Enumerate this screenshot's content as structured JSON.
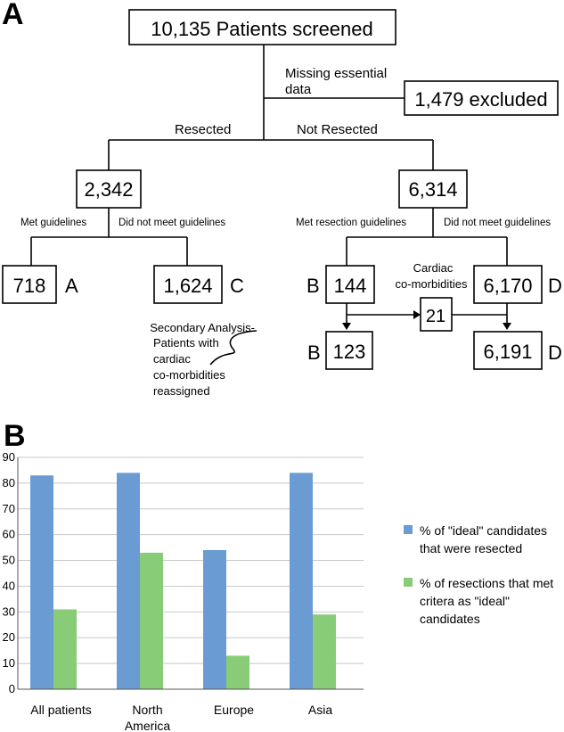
{
  "panel_a": {
    "label": "A",
    "screened": "10,135 Patients screened",
    "missing_line1": "Missing essential",
    "missing_line2": "data",
    "excluded": "1,479 excluded",
    "resected_label": "Resected",
    "not_resected_label": "Not Resected",
    "resected_total": "2,342",
    "not_resected_total": "6,314",
    "met_guidelines": "Met guidelines",
    "did_not_meet_left": "Did not meet guidelines",
    "met_resection_guidelines": "Met resection guidelines",
    "did_not_meet_right": "Did not meet guidelines",
    "box_a_value": "718",
    "box_a_letter": "A",
    "box_c_value": "1,624",
    "box_c_letter": "C",
    "box_b_value": "144",
    "box_b_letter": "B",
    "box_d_value": "6,170",
    "box_d_letter": "D",
    "cardiac_line1": "Cardiac",
    "cardiac_line2": "co-morbidities",
    "cardiac_value": "21",
    "box_b2_value": "123",
    "box_b2_letter": "B",
    "box_d2_value": "6,191",
    "box_d2_letter": "D",
    "secondary_lines": [
      "Secondary Analysis-",
      "Patients with",
      "cardiac",
      "co-morbidities",
      "reassigned"
    ]
  },
  "panel_b": {
    "label": "B"
  },
  "chart_data": {
    "type": "bar",
    "categories": [
      "All patients",
      "North America",
      "Europe",
      "Asia"
    ],
    "category_lines": [
      [
        "All patients"
      ],
      [
        "North",
        "America"
      ],
      [
        "Europe"
      ],
      [
        "Asia"
      ]
    ],
    "series": [
      {
        "name": "% of \"ideal\" candidates that were resected",
        "legend_lines": [
          "% of \"ideal\" candidates",
          "that were resected"
        ],
        "color": "#6a9bd3",
        "values": [
          83,
          84,
          54,
          84
        ]
      },
      {
        "name": "% of resections that met critera as \"ideal\" candidates",
        "legend_lines": [
          "% of resections that met",
          "critera as \"ideal\"",
          "candidates"
        ],
        "color": "#88cc77",
        "values": [
          31,
          53,
          13,
          29
        ]
      }
    ],
    "ylim": [
      0,
      90
    ],
    "yticks": [
      0,
      10,
      20,
      30,
      40,
      50,
      60,
      70,
      80,
      90
    ],
    "grid": true,
    "legend_position": "right"
  }
}
